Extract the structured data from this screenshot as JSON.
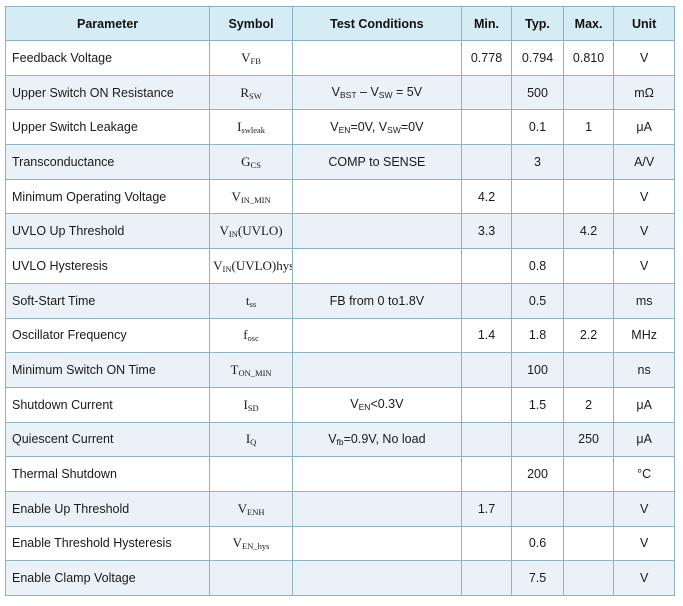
{
  "headers": {
    "parameter": "Parameter",
    "symbol": "Symbol",
    "conditions": "Test Conditions",
    "min": "Min.",
    "typ": "Typ.",
    "max": "Max.",
    "unit": "Unit"
  },
  "rows": [
    {
      "param": "Feedback Voltage",
      "sym": "V",
      "sym_sub": "FB",
      "cond": "",
      "min": "0.778",
      "typ": "0.794",
      "max": "0.810",
      "unit": "V"
    },
    {
      "param": "Upper Switch ON Resistance",
      "sym": "R",
      "sym_sub": "SW",
      "cond_a": "V",
      "cond_a_sub": "BST",
      "cond_b": " – V",
      "cond_b_sub": "SW",
      "cond_c": " = 5V",
      "min": "",
      "typ": "500",
      "max": "",
      "unit": "mΩ"
    },
    {
      "param": "Upper Switch Leakage",
      "sym": "I",
      "sym_sub": "swleak",
      "cond_a": "V",
      "cond_a_sub": "EN",
      "cond_b": "=0V, V",
      "cond_b_sub": "SW",
      "cond_c": "=0V",
      "min": "",
      "typ": "0.1",
      "max": "1",
      "unit": "μA"
    },
    {
      "param": "Transconductance",
      "sym": "G",
      "sym_sub": "CS",
      "cond": "COMP to SENSE",
      "min": "",
      "typ": "3",
      "max": "",
      "unit": "A/V"
    },
    {
      "param": "Minimum Operating Voltage",
      "sym": "V",
      "sym_sub": "IN_MIN",
      "cond": "",
      "min": "4.2",
      "typ": "",
      "max": "",
      "unit": "V"
    },
    {
      "param": "UVLO Up Threshold",
      "sym": "V",
      "sym_sub": "IN",
      "sym_tail": "(UVLO)",
      "cond": "",
      "min": "3.3",
      "typ": "",
      "max": "4.2",
      "unit": "V"
    },
    {
      "param": "UVLO Hysteresis",
      "sym": "V",
      "sym_sub": "IN",
      "sym_tail": "(UVLO)hys",
      "cond": "",
      "min": "",
      "typ": "0.8",
      "max": "",
      "unit": "V"
    },
    {
      "param": "Soft-Start Time",
      "sym": "t",
      "sym_sub": "ss",
      "cond": "FB from 0 to1.8V",
      "min": "",
      "typ": "0.5",
      "max": "",
      "unit": "ms"
    },
    {
      "param": "Oscillator Frequency",
      "sym": "f",
      "sym_sub": "osc",
      "cond": "",
      "min": "1.4",
      "typ": "1.8",
      "max": "2.2",
      "unit": "MHz"
    },
    {
      "param": "Minimum Switch ON Time",
      "sym": "T",
      "sym_sub": "ON_MIN",
      "cond": "",
      "min": "",
      "typ": "100",
      "max": "",
      "unit": "ns"
    },
    {
      "param": "Shutdown Current",
      "sym": "I",
      "sym_sub": "SD",
      "cond_a": "V",
      "cond_a_sub": "EN",
      "cond_b": "<0.3V",
      "min": "",
      "typ": "1.5",
      "max": "2",
      "unit": "μA"
    },
    {
      "param": "Quiescent Current",
      "sym": "I",
      "sym_sub": "Q",
      "cond_a": "V",
      "cond_a_sub": "fb",
      "cond_b": "=0.9V, No load",
      "min": "",
      "typ": "",
      "max": "250",
      "unit": "μA"
    },
    {
      "param": "Thermal Shutdown",
      "sym": "",
      "sym_sub": "",
      "cond": "",
      "min": "",
      "typ": "200",
      "max": "",
      "unit": "°C"
    },
    {
      "param": "Enable Up Threshold",
      "sym": "V",
      "sym_sub": "ENH",
      "cond": "",
      "min": "1.7",
      "typ": "",
      "max": "",
      "unit": "V"
    },
    {
      "param": "Enable Threshold Hysteresis",
      "sym": "V",
      "sym_sub": "EN_hys",
      "cond": "",
      "min": "",
      "typ": "0.6",
      "max": "",
      "unit": "V"
    },
    {
      "param": "Enable Clamp Voltage",
      "sym": "",
      "sym_sub": "",
      "cond": "",
      "min": "",
      "typ": "7.5",
      "max": "",
      "unit": "V"
    }
  ]
}
